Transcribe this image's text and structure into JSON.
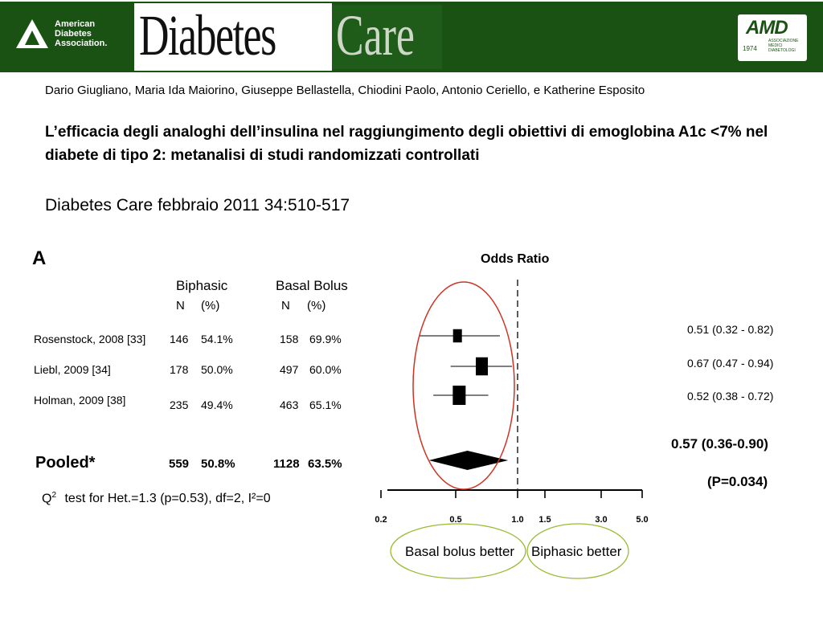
{
  "header": {
    "ada_logo_lines": [
      "American",
      "Diabetes",
      "Association."
    ],
    "journal_word_1": "Diabetes",
    "journal_word_2": "Care",
    "amd_logo": "AMD",
    "amd_year": "1974",
    "amd_subtitle_lines": [
      "ASSOCIAZIONE",
      "MEDICI",
      "DIABETOLOGI"
    ],
    "colors": {
      "band": "#1a5214",
      "care_box": "#1f5c1a"
    }
  },
  "authors": "Dario Giugliano, Maria Ida Maiorino, Giuseppe Bellastella, Chiodini Paolo, Antonio Ceriello, e Katherine Esposito",
  "title": "L’efficacia degli analoghi dell’insulina nel raggiungimento degli obiettivi di emoglobina A1c <7% nel diabete di tipo 2: metanalisi di studi randomizzati controllati",
  "citation": "Diabetes Care febbraio 2011 34:510-517",
  "figure": {
    "panel_label": "A",
    "header_biphasic": "Biphasic",
    "header_basal": "Basal Bolus",
    "col_n": "N",
    "col_pct": "(%)",
    "odds_ratio_title": "Odds Ratio",
    "pooled_label": "Pooled*",
    "pooled_or": "0.57 (0.36-0.90)",
    "pooled_p": "(P=0.034)",
    "het_q": "Q",
    "het_sup": "2",
    "het_text": "test for Het.=1.3 (p=0.53), df=2, I²=0",
    "favours_left": "Basal bolus better",
    "favours_right": "Biphasic better",
    "colors": {
      "highlight_ellipse": "#cc3322",
      "favour_ellipse": "#99bb33"
    }
  },
  "chart_data": {
    "type": "forest",
    "title": "Odds Ratio",
    "x_scale": "log",
    "xlim": [
      0.2,
      5.0
    ],
    "x_ticks": [
      "0.2",
      "0.5",
      "1.0",
      "1.5",
      "3.0",
      "5.0"
    ],
    "reference_line": 1.0,
    "studies": [
      {
        "label": "Rosenstock, 2008 [33]",
        "biphasic_n": "146",
        "biphasic_pct": "54.1%",
        "basal_n": "158",
        "basal_pct": "69.9%",
        "or": 0.51,
        "ci_low": 0.32,
        "ci_high": 0.82,
        "or_text": "0.51 (0.32 - 0.82)"
      },
      {
        "label": "Liebl, 2009 [34]",
        "biphasic_n": "178",
        "biphasic_pct": "50.0%",
        "basal_n": "497",
        "basal_pct": "60.0%",
        "or": 0.67,
        "ci_low": 0.47,
        "ci_high": 0.94,
        "or_text": "0.67 (0.47 - 0.94)"
      },
      {
        "label": "Holman, 2009 [38]",
        "biphasic_n": "235",
        "biphasic_pct": "49.4%",
        "basal_n": "463",
        "basal_pct": "65.1%",
        "or": 0.52,
        "ci_low": 0.38,
        "ci_high": 0.72,
        "or_text": "0.52 (0.38 - 0.72)"
      }
    ],
    "pooled": {
      "biphasic_n": "559",
      "biphasic_pct": "50.8%",
      "basal_n": "1128",
      "basal_pct": "63.5%",
      "or": 0.57,
      "ci_low": 0.36,
      "ci_high": 0.9
    }
  }
}
